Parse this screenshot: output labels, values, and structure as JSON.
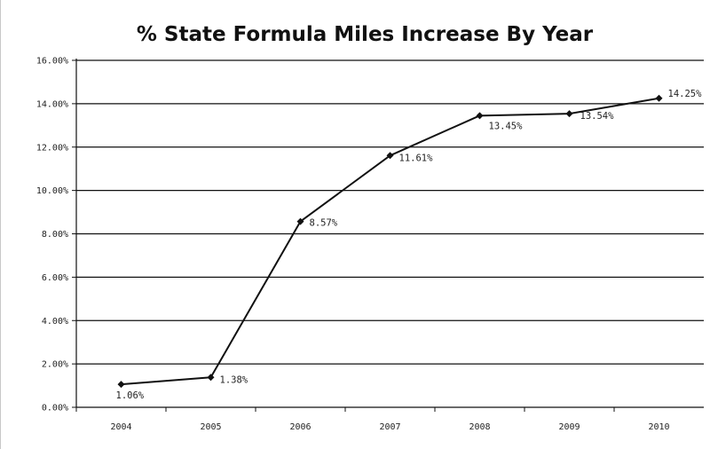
{
  "chart_data": {
    "type": "line",
    "title": "% State Formula Miles Increase By Year",
    "xlabel": "",
    "ylabel": "",
    "categories": [
      "2004",
      "2005",
      "2006",
      "2007",
      "2008",
      "2009",
      "2010"
    ],
    "values": [
      1.06,
      1.38,
      8.57,
      11.61,
      13.45,
      13.54,
      14.25
    ],
    "data_labels": [
      "1.06%",
      "1.38%",
      "8.57%",
      "11.61%",
      "13.45%",
      "13.54%",
      "14.25%"
    ],
    "ylim": [
      0,
      16
    ],
    "yticks": [
      0,
      2,
      4,
      6,
      8,
      10,
      12,
      14,
      16
    ],
    "ytick_labels": [
      "0.00%",
      "2.00%",
      "4.00%",
      "6.00%",
      "8.00%",
      "10.00%",
      "12.00%",
      "14.00%",
      "16.00%"
    ],
    "grid": true,
    "legend": "none",
    "colors": {
      "line": "#111111",
      "grid": "#111111",
      "text": "#222222"
    }
  }
}
